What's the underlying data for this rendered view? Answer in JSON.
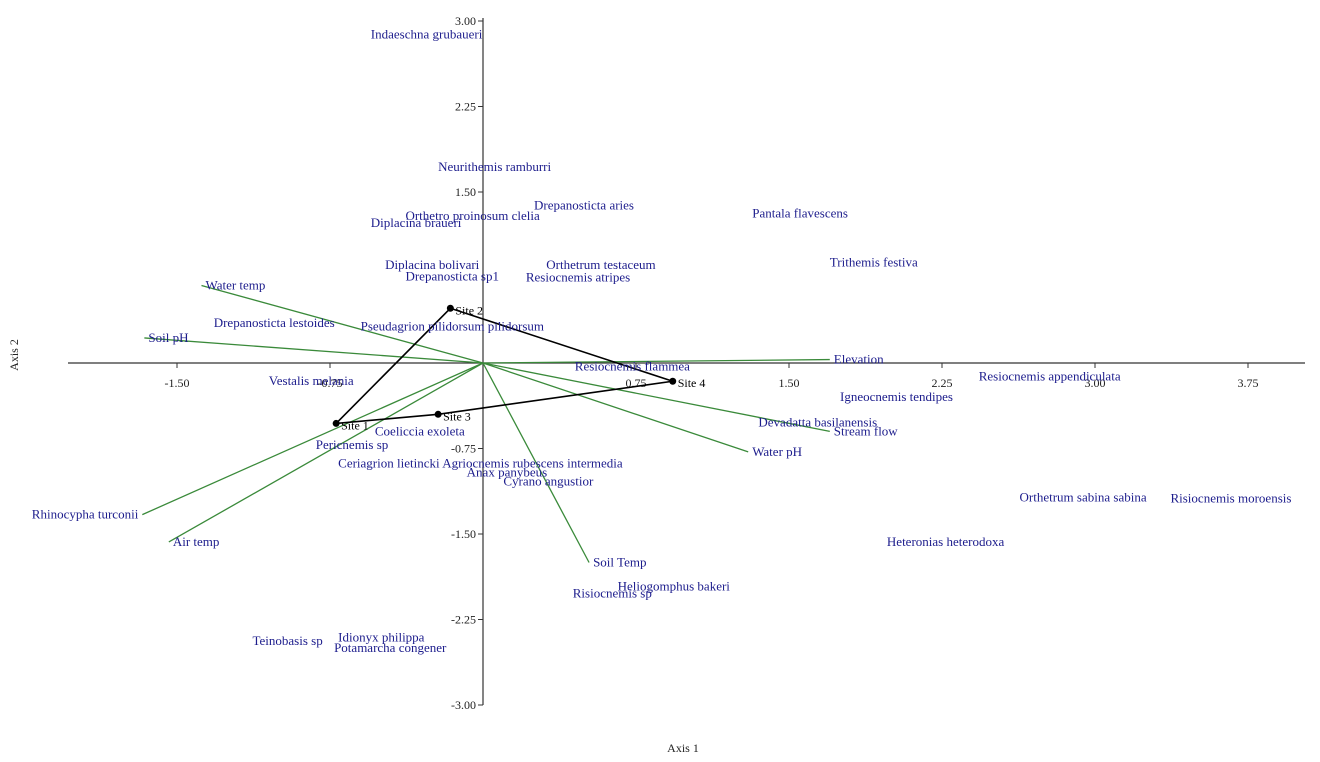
{
  "chart_data": {
    "type": "scatter",
    "title": "",
    "xlabel": "Axis 1",
    "ylabel": "Axis 2",
    "xlim": [
      -2.05,
      4.2
    ],
    "ylim": [
      -3.05,
      3.05
    ],
    "x_ticks": [
      -1.5,
      -0.75,
      0.75,
      1.5,
      2.25,
      3.0,
      3.75
    ],
    "x_tick_labels": [
      "-1.50",
      "-0.75",
      "0.75",
      "1.50",
      "2.25",
      "3.00",
      "3.75"
    ],
    "y_ticks": [
      3.0,
      2.25,
      1.5,
      -0.75,
      -1.5,
      -2.25,
      -3.0
    ],
    "y_tick_labels": [
      "3.00",
      "2.25",
      "1.50",
      "-0.75",
      "-1.50",
      "-2.25",
      "-3.00"
    ],
    "colors": {
      "species": "#1c1c8c",
      "env_vector": "#3a8a3a",
      "site_hull": "#000000"
    },
    "species": [
      {
        "name": "Indaeschna grubaueri",
        "x": -0.55,
        "y": 2.88
      },
      {
        "name": "Neurithemis ramburri",
        "x": -0.22,
        "y": 1.72
      },
      {
        "name": "Drepanosticta aries",
        "x": 0.25,
        "y": 1.38
      },
      {
        "name": "Orthetro proinosum clelia",
        "x": -0.38,
        "y": 1.29
      },
      {
        "name": "Diplacina braueri",
        "x": -0.55,
        "y": 1.23
      },
      {
        "name": "Pantala flavescens",
        "x": 1.32,
        "y": 1.31
      },
      {
        "name": "Diplacina bolivari",
        "x": -0.48,
        "y": 0.86
      },
      {
        "name": "Orthetrum testaceum",
        "x": 0.31,
        "y": 0.86
      },
      {
        "name": "Trithemis festiva",
        "x": 1.7,
        "y": 0.88
      },
      {
        "name": "Drepanosticta sp1",
        "x": -0.38,
        "y": 0.76
      },
      {
        "name": "Resiocnemis atripes",
        "x": 0.21,
        "y": 0.75
      },
      {
        "name": "Drepanosticta lestoides",
        "x": -1.32,
        "y": 0.35
      },
      {
        "name": "Pseudagrion pilidorsum pilidorsum",
        "x": -0.6,
        "y": 0.32
      },
      {
        "name": "Resiocnemis flammea",
        "x": 0.45,
        "y": -0.03
      },
      {
        "name": "Vestalis melania",
        "x": -1.05,
        "y": -0.16
      },
      {
        "name": "Resiocnemis appendiculata",
        "x": 2.43,
        "y": -0.12
      },
      {
        "name": "Igneocnemis tendipes",
        "x": 1.75,
        "y": -0.3
      },
      {
        "name": "Devadatta basilanensis",
        "x": 1.35,
        "y": -0.52
      },
      {
        "name": "Coeliccia exoleta",
        "x": -0.53,
        "y": -0.6
      },
      {
        "name": "Pericnemis sp",
        "x": -0.82,
        "y": -0.72
      },
      {
        "name": "Ceriagrion lietincki",
        "x": -0.71,
        "y": -0.88
      },
      {
        "name": "Agriocnemis rubescens intermedia",
        "x": -0.2,
        "y": -0.88
      },
      {
        "name": "Anax panybeus",
        "x": -0.08,
        "y": -0.96
      },
      {
        "name": "Cyrano angustior",
        "x": 0.1,
        "y": -1.04
      },
      {
        "name": "Orthetrum sabina sabina",
        "x": 2.63,
        "y": -1.18
      },
      {
        "name": "Risiocnemis moroensis",
        "x": 3.37,
        "y": -1.19
      },
      {
        "name": "Heteronias heterodoxa",
        "x": 1.98,
        "y": -1.57
      },
      {
        "name": "Heliogomphus bakeri",
        "x": 0.66,
        "y": -1.96
      },
      {
        "name": "Risiocnemis sp",
        "x": 0.44,
        "y": -2.02
      },
      {
        "name": "Teinobasis sp",
        "x": -1.13,
        "y": -2.44
      },
      {
        "name": "Idionyx philippa",
        "x": -0.71,
        "y": -2.41
      },
      {
        "name": "Potamarcha congener",
        "x": -0.73,
        "y": -2.5
      }
    ],
    "env_vectors": [
      {
        "name": "Water temp",
        "x": -1.38,
        "y": 0.68
      },
      {
        "name": "Soil pH",
        "x": -1.66,
        "y": 0.22
      },
      {
        "name": "Elevation",
        "x": 1.7,
        "y": 0.03
      },
      {
        "name": "Stream flow",
        "x": 1.7,
        "y": -0.6
      },
      {
        "name": "Water  pH",
        "x": 1.3,
        "y": -0.78
      },
      {
        "name": "Soil Temp",
        "x": 0.52,
        "y": -1.75
      },
      {
        "name": "Rhinocypha turconii",
        "x": -1.67,
        "y": -1.33
      },
      {
        "name": "Air temp",
        "x": -1.54,
        "y": -1.57
      }
    ],
    "sites": [
      {
        "name": "Site 1",
        "x": -0.72,
        "y": -0.53
      },
      {
        "name": "Site 2",
        "x": -0.16,
        "y": 0.48
      },
      {
        "name": "Site 3",
        "x": -0.22,
        "y": -0.45
      },
      {
        "name": "Site 4",
        "x": 0.93,
        "y": -0.16
      }
    ],
    "hull_order": [
      "Site 1",
      "Site 2",
      "Site 4",
      "Site 3",
      "Site 1"
    ],
    "grid": false,
    "legend": "none"
  }
}
